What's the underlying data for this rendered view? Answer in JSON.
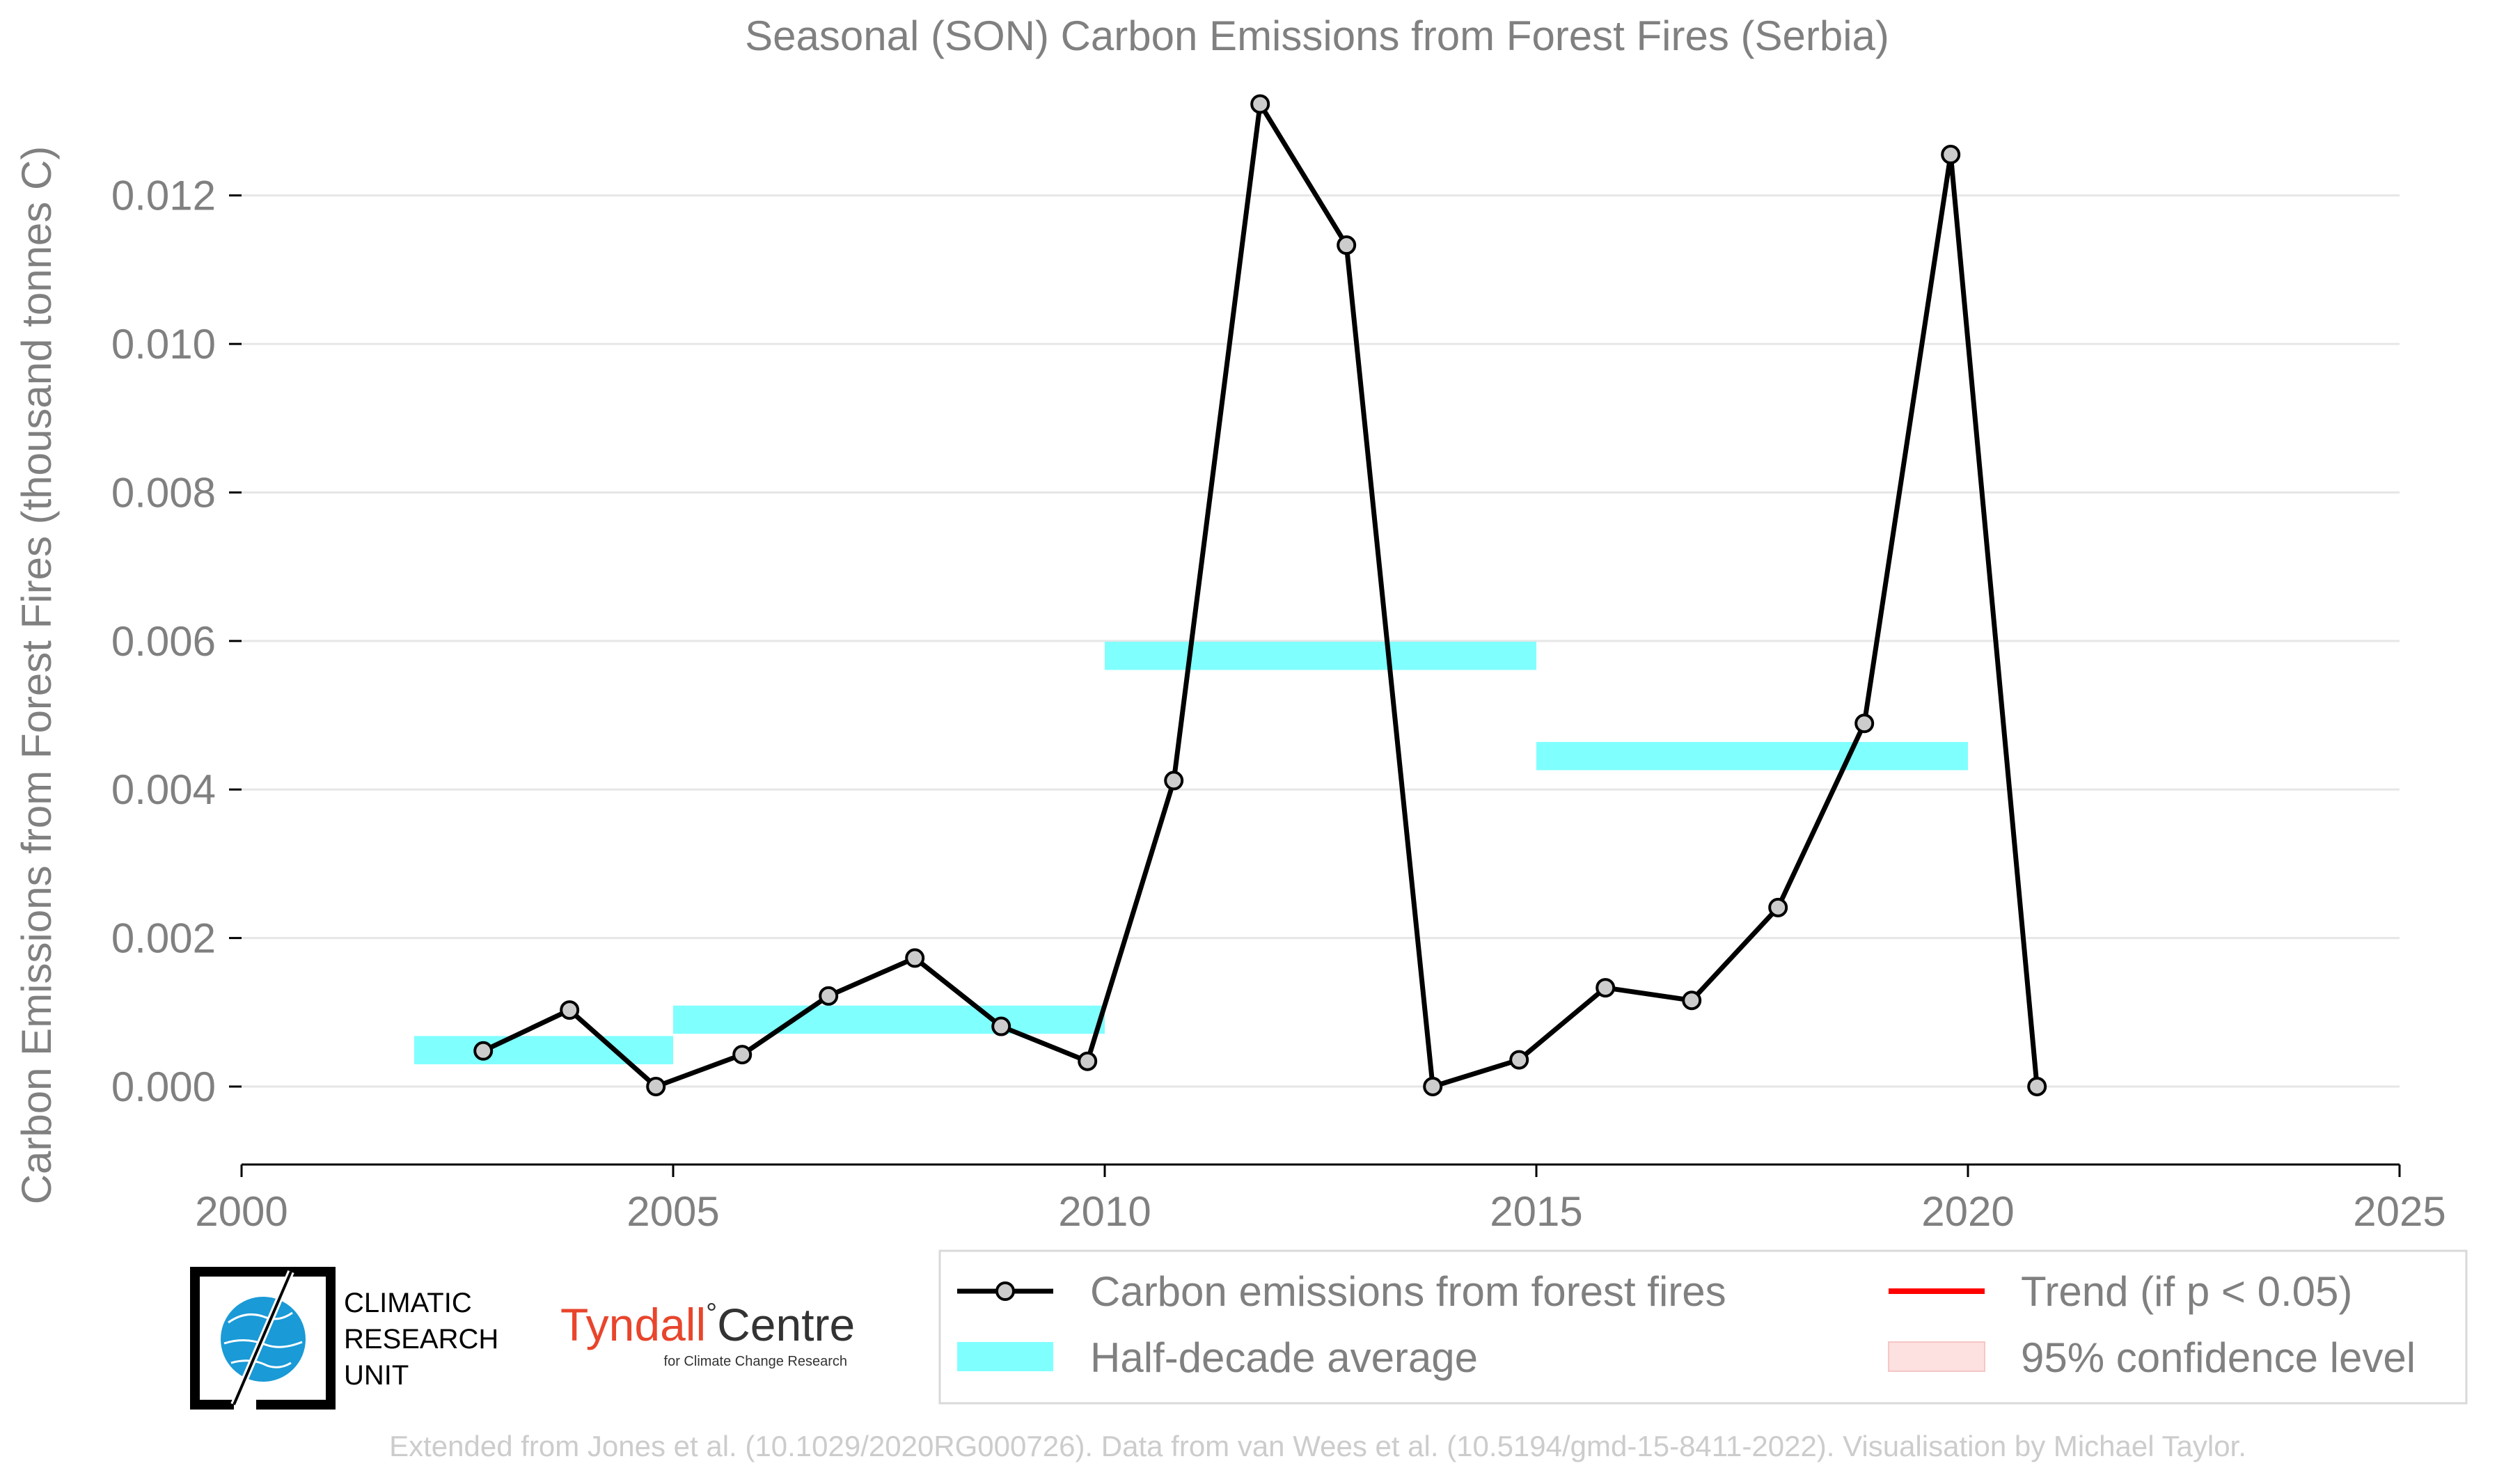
{
  "chart_data": {
    "type": "line",
    "title": "Seasonal (SON) Carbon Emissions from Forest Fires (Serbia)",
    "xlabel": "",
    "ylabel": "Carbon Emissions from Forest Fires (thousand tonnes C)",
    "xlim": [
      2000,
      2025
    ],
    "ylim": [
      -0.00105,
      0.01345
    ],
    "xticks": [
      2000,
      2005,
      2010,
      2015,
      2020,
      2025
    ],
    "xtick_labels": [
      "2000",
      "2005",
      "2010",
      "2015",
      "2020",
      "2025"
    ],
    "yticks": [
      0,
      0.002,
      0.004,
      0.006,
      0.008,
      0.01,
      0.012
    ],
    "ytick_labels": [
      "0.000",
      "0.002",
      "0.004",
      "0.006",
      "0.008",
      "0.010",
      "0.012"
    ],
    "grid": "horizontal",
    "series": [
      {
        "name": "Carbon emissions from forest fires",
        "color": "#000000",
        "x": [
          2002.8,
          2003.8,
          2004.8,
          2005.8,
          2006.8,
          2007.8,
          2008.8,
          2009.8,
          2010.8,
          2011.8,
          2012.8,
          2013.8,
          2014.8,
          2015.8,
          2016.8,
          2017.8,
          2018.8,
          2019.8,
          2020.8
        ],
        "y": [
          0.00048,
          0.00103,
          0.0,
          0.00043,
          0.00122,
          0.00173,
          0.00081,
          0.00034,
          0.00412,
          0.01323,
          0.01133,
          0.0,
          0.00036,
          0.00133,
          0.00116,
          0.00241,
          0.00489,
          0.01255,
          0.0
        ]
      }
    ],
    "half_decade_average": {
      "name": "Half-decade average",
      "color": "#80ffff",
      "periods": [
        {
          "x_start": 2002,
          "x_end": 2005,
          "y_low": 0.0003,
          "y_high": 0.00068
        },
        {
          "x_start": 2005,
          "x_end": 2010,
          "y_low": 0.00071,
          "y_high": 0.00109
        },
        {
          "x_start": 2010,
          "x_end": 2015,
          "y_low": 0.00561,
          "y_high": 0.00599
        },
        {
          "x_start": 2015,
          "x_end": 2020,
          "y_low": 0.00426,
          "y_high": 0.00464
        }
      ]
    },
    "legend": {
      "position": "bottom-right",
      "entries": [
        {
          "label": "Carbon emissions from forest fires",
          "kind": "line-marker",
          "color": "#000000"
        },
        {
          "label": "Trend (if p < 0.05)",
          "kind": "line",
          "color": "#ff0000"
        },
        {
          "label": "Half-decade average",
          "kind": "patch",
          "color": "#80ffff"
        },
        {
          "label": "95% confidence level",
          "kind": "patch",
          "color": "#fde0e0"
        }
      ]
    }
  },
  "logos": {
    "cru": [
      "CLIMATIC",
      "RESEARCH",
      "UNIT"
    ],
    "tyndall_main": "Tyndall",
    "tyndall_degree": "°",
    "tyndall_centre": "Centre",
    "tyndall_sub": "for Climate Change Research"
  },
  "footer": "Extended from Jones et al. (10.1029/2020RG000726). Data from van Wees et al. (10.5194/gmd-15-8411-2022). Visualisation by Michael Taylor."
}
